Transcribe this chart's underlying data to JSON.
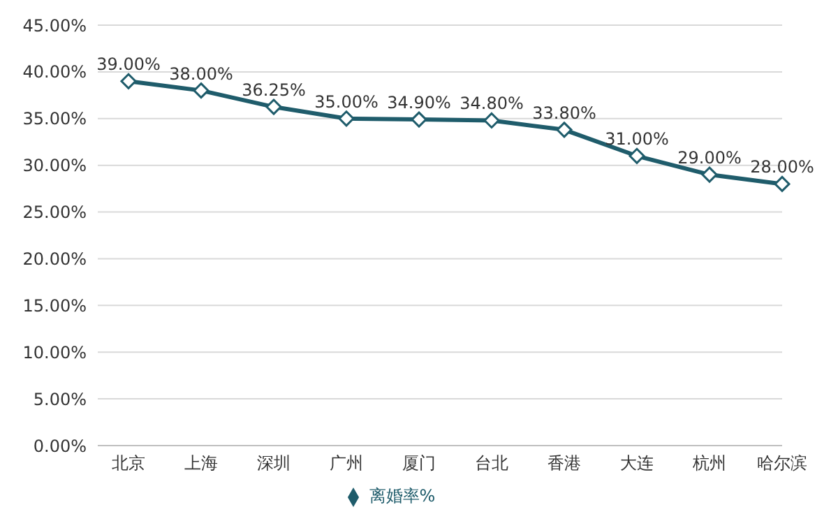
{
  "chart_data": {
    "type": "line",
    "categories": [
      "北京",
      "上海",
      "深圳",
      "广州",
      "厦门",
      "台北",
      "香港",
      "大连",
      "杭州",
      "哈尔滨"
    ],
    "series": [
      {
        "name": "离婚率%",
        "color": "#1f5c6b",
        "values": [
          39,
          38,
          36.25,
          35,
          34.9,
          34.8,
          33.8,
          31,
          29,
          28
        ],
        "value_labels": [
          "39.00%",
          "38.00%",
          "36.25%",
          "35.00%",
          "34.90%",
          "34.80%",
          "33.80%",
          "31.00%",
          "29.00%",
          "28.00%"
        ]
      }
    ],
    "ylim": [
      0,
      45
    ],
    "yticks": [
      {
        "value": 0,
        "label": "0.00%"
      },
      {
        "value": 5,
        "label": "5.00%"
      },
      {
        "value": 10,
        "label": "10.00%"
      },
      {
        "value": 15,
        "label": "15.00%"
      },
      {
        "value": 20,
        "label": "20.00%"
      },
      {
        "value": 25,
        "label": "25.00%"
      },
      {
        "value": 30,
        "label": "30.00%"
      },
      {
        "value": 35,
        "label": "35.00%"
      },
      {
        "value": 40,
        "label": "40.00%"
      },
      {
        "value": 45,
        "label": "45.00%"
      }
    ],
    "grid": "y",
    "legend": "bottom",
    "marker": "diamond",
    "line_style": "solid"
  }
}
